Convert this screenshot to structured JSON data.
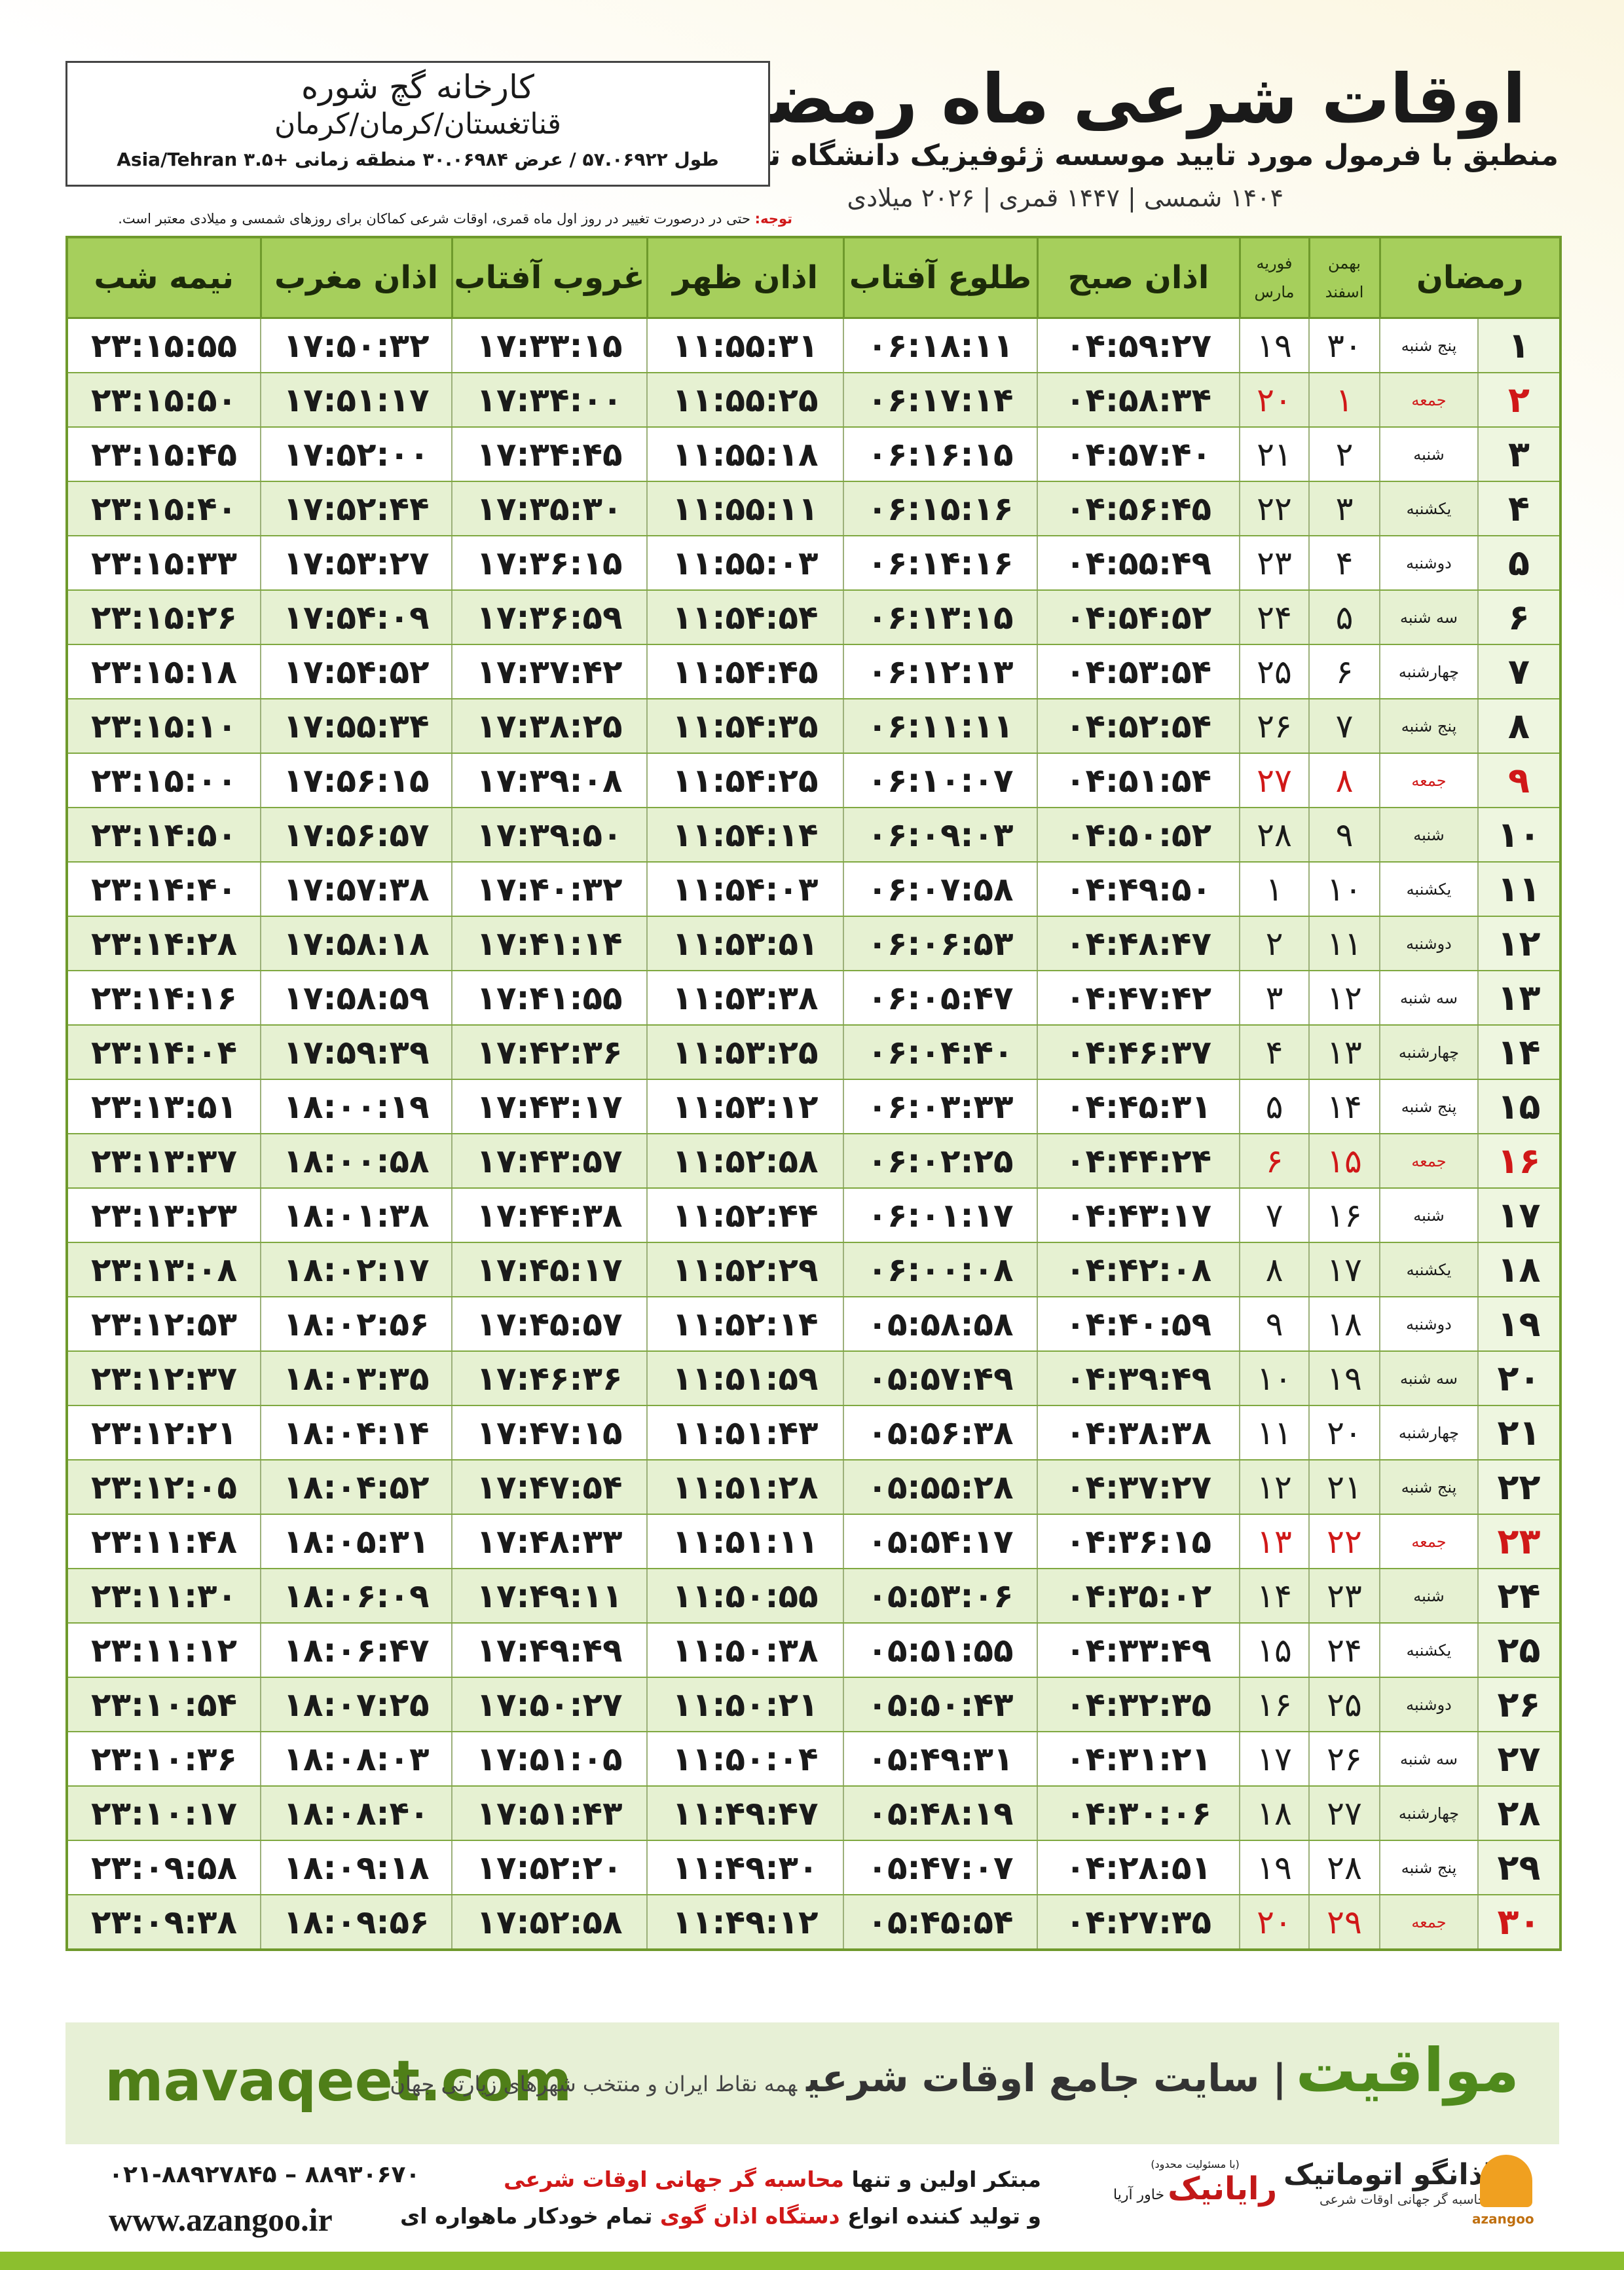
{
  "header": {
    "title": "اوقات شرعی ماه رمضان",
    "subtitle": "منطبق با فرمول مورد تایید موسسه ژئوفیزیک دانشگاه تهران",
    "year_line": "۱۴۰۴ شمسی | ۱۴۴۷ قمری | ۲۰۲۶ میلادی"
  },
  "location": {
    "name": "کارخانه گچ شوره",
    "region": "قناتغستان/کرمان/کرمان",
    "coords": "طول ۵۷.۰۶۹۲۲ / عرض ۳۰.۰۶۹۸۴ منطقه زمانی +۳.۵ Asia/Tehran"
  },
  "note": {
    "label": "توجه:",
    "text": "حتی در درصورت تغییر در روز اول ماه قمری، اوقات شرعی کماکان برای روزهای شمسی و میلادی معتبر است."
  },
  "table": {
    "columns": {
      "ramadan": "رمضان",
      "shamsi": [
        "بهمن",
        "اسفند"
      ],
      "miladi": [
        "فوریه",
        "مارس"
      ],
      "times": [
        "اذان صبح",
        "طلوع آفتاب",
        "اذان ظهر",
        "غروب آفتاب",
        "اذان مغرب",
        "نیمه شب"
      ]
    },
    "rows": [
      {
        "cells": [
          "۱",
          "پنج شنبه",
          "۳۰",
          "۱۹",
          "۰۴:۵۹:۲۷",
          "۰۶:۱۸:۱۱",
          "۱۱:۵۵:۳۱",
          "۱۷:۳۳:۱۵",
          "۱۷:۵۰:۳۲",
          "۲۳:۱۵:۵۵"
        ]
      },
      {
        "cells": [
          "۲",
          "جمعه",
          "۱",
          "۲۰",
          "۰۴:۵۸:۳۴",
          "۰۶:۱۷:۱۴",
          "۱۱:۵۵:۲۵",
          "۱۷:۳۴:۰۰",
          "۱۷:۵۱:۱۷",
          "۲۳:۱۵:۵۰"
        ],
        "color": "#d01818"
      },
      {
        "cells": [
          "۳",
          "شنبه",
          "۲",
          "۲۱",
          "۰۴:۵۷:۴۰",
          "۰۶:۱۶:۱۵",
          "۱۱:۵۵:۱۸",
          "۱۷:۳۴:۴۵",
          "۱۷:۵۲:۰۰",
          "۲۳:۱۵:۴۵"
        ]
      },
      {
        "cells": [
          "۴",
          "یکشنبه",
          "۳",
          "۲۲",
          "۰۴:۵۶:۴۵",
          "۰۶:۱۵:۱۶",
          "۱۱:۵۵:۱۱",
          "۱۷:۳۵:۳۰",
          "۱۷:۵۲:۴۴",
          "۲۳:۱۵:۴۰"
        ]
      },
      {
        "cells": [
          "۵",
          "دوشنبه",
          "۴",
          "۲۳",
          "۰۴:۵۵:۴۹",
          "۰۶:۱۴:۱۶",
          "۱۱:۵۵:۰۳",
          "۱۷:۳۶:۱۵",
          "۱۷:۵۳:۲۷",
          "۲۳:۱۵:۳۳"
        ]
      },
      {
        "cells": [
          "۶",
          "سه شنبه",
          "۵",
          "۲۴",
          "۰۴:۵۴:۵۲",
          "۰۶:۱۳:۱۵",
          "۱۱:۵۴:۵۴",
          "۱۷:۳۶:۵۹",
          "۱۷:۵۴:۰۹",
          "۲۳:۱۵:۲۶"
        ]
      },
      {
        "cells": [
          "۷",
          "چهارشنبه",
          "۶",
          "۲۵",
          "۰۴:۵۳:۵۴",
          "۰۶:۱۲:۱۳",
          "۱۱:۵۴:۴۵",
          "۱۷:۳۷:۴۲",
          "۱۷:۵۴:۵۲",
          "۲۳:۱۵:۱۸"
        ]
      },
      {
        "cells": [
          "۸",
          "پنج شنبه",
          "۷",
          "۲۶",
          "۰۴:۵۲:۵۴",
          "۰۶:۱۱:۱۱",
          "۱۱:۵۴:۳۵",
          "۱۷:۳۸:۲۵",
          "۱۷:۵۵:۳۴",
          "۲۳:۱۵:۱۰"
        ]
      },
      {
        "cells": [
          "۹",
          "جمعه",
          "۸",
          "۲۷",
          "۰۴:۵۱:۵۴",
          "۰۶:۱۰:۰۷",
          "۱۱:۵۴:۲۵",
          "۱۷:۳۹:۰۸",
          "۱۷:۵۶:۱۵",
          "۲۳:۱۵:۰۰"
        ],
        "color": "#d01818"
      },
      {
        "cells": [
          "۱۰",
          "شنبه",
          "۹",
          "۲۸",
          "۰۴:۵۰:۵۲",
          "۰۶:۰۹:۰۳",
          "۱۱:۵۴:۱۴",
          "۱۷:۳۹:۵۰",
          "۱۷:۵۶:۵۷",
          "۲۳:۱۴:۵۰"
        ]
      },
      {
        "cells": [
          "۱۱",
          "یکشنبه",
          "۱۰",
          "۱",
          "۰۴:۴۹:۵۰",
          "۰۶:۰۷:۵۸",
          "۱۱:۵۴:۰۳",
          "۱۷:۴۰:۳۲",
          "۱۷:۵۷:۳۸",
          "۲۳:۱۴:۴۰"
        ]
      },
      {
        "cells": [
          "۱۲",
          "دوشنبه",
          "۱۱",
          "۲",
          "۰۴:۴۸:۴۷",
          "۰۶:۰۶:۵۳",
          "۱۱:۵۳:۵۱",
          "۱۷:۴۱:۱۴",
          "۱۷:۵۸:۱۸",
          "۲۳:۱۴:۲۸"
        ]
      },
      {
        "cells": [
          "۱۳",
          "سه شنبه",
          "۱۲",
          "۳",
          "۰۴:۴۷:۴۲",
          "۰۶:۰۵:۴۷",
          "۱۱:۵۳:۳۸",
          "۱۷:۴۱:۵۵",
          "۱۷:۵۸:۵۹",
          "۲۳:۱۴:۱۶"
        ]
      },
      {
        "cells": [
          "۱۴",
          "چهارشنبه",
          "۱۳",
          "۴",
          "۰۴:۴۶:۳۷",
          "۰۶:۰۴:۴۰",
          "۱۱:۵۳:۲۵",
          "۱۷:۴۲:۳۶",
          "۱۷:۵۹:۳۹",
          "۲۳:۱۴:۰۴"
        ]
      },
      {
        "cells": [
          "۱۵",
          "پنج شنبه",
          "۱۴",
          "۵",
          "۰۴:۴۵:۳۱",
          "۰۶:۰۳:۳۳",
          "۱۱:۵۳:۱۲",
          "۱۷:۴۳:۱۷",
          "۱۸:۰۰:۱۹",
          "۲۳:۱۳:۵۱"
        ]
      },
      {
        "cells": [
          "۱۶",
          "جمعه",
          "۱۵",
          "۶",
          "۰۴:۴۴:۲۴",
          "۰۶:۰۲:۲۵",
          "۱۱:۵۲:۵۸",
          "۱۷:۴۳:۵۷",
          "۱۸:۰۰:۵۸",
          "۲۳:۱۳:۳۷"
        ],
        "color": "#d01818"
      },
      {
        "cells": [
          "۱۷",
          "شنبه",
          "۱۶",
          "۷",
          "۰۴:۴۳:۱۷",
          "۰۶:۰۱:۱۷",
          "۱۱:۵۲:۴۴",
          "۱۷:۴۴:۳۸",
          "۱۸:۰۱:۳۸",
          "۲۳:۱۳:۲۳"
        ]
      },
      {
        "cells": [
          "۱۸",
          "یکشنبه",
          "۱۷",
          "۸",
          "۰۴:۴۲:۰۸",
          "۰۶:۰۰:۰۸",
          "۱۱:۵۲:۲۹",
          "۱۷:۴۵:۱۷",
          "۱۸:۰۲:۱۷",
          "۲۳:۱۳:۰۸"
        ]
      },
      {
        "cells": [
          "۱۹",
          "دوشنبه",
          "۱۸",
          "۹",
          "۰۴:۴۰:۵۹",
          "۰۵:۵۸:۵۸",
          "۱۱:۵۲:۱۴",
          "۱۷:۴۵:۵۷",
          "۱۸:۰۲:۵۶",
          "۲۳:۱۲:۵۳"
        ]
      },
      {
        "cells": [
          "۲۰",
          "سه شنبه",
          "۱۹",
          "۱۰",
          "۰۴:۳۹:۴۹",
          "۰۵:۵۷:۴۹",
          "۱۱:۵۱:۵۹",
          "۱۷:۴۶:۳۶",
          "۱۸:۰۳:۳۵",
          "۲۳:۱۲:۳۷"
        ]
      },
      {
        "cells": [
          "۲۱",
          "چهارشنبه",
          "۲۰",
          "۱۱",
          "۰۴:۳۸:۳۸",
          "۰۵:۵۶:۳۸",
          "۱۱:۵۱:۴۳",
          "۱۷:۴۷:۱۵",
          "۱۸:۰۴:۱۴",
          "۲۳:۱۲:۲۱"
        ]
      },
      {
        "cells": [
          "۲۲",
          "پنج شنبه",
          "۲۱",
          "۱۲",
          "۰۴:۳۷:۲۷",
          "۰۵:۵۵:۲۸",
          "۱۱:۵۱:۲۸",
          "۱۷:۴۷:۵۴",
          "۱۸:۰۴:۵۲",
          "۲۳:۱۲:۰۵"
        ]
      },
      {
        "cells": [
          "۲۳",
          "جمعه",
          "۲۲",
          "۱۳",
          "۰۴:۳۶:۱۵",
          "۰۵:۵۴:۱۷",
          "۱۱:۵۱:۱۱",
          "۱۷:۴۸:۳۳",
          "۱۸:۰۵:۳۱",
          "۲۳:۱۱:۴۸"
        ],
        "color": "#d01818"
      },
      {
        "cells": [
          "۲۴",
          "شنبه",
          "۲۳",
          "۱۴",
          "۰۴:۳۵:۰۲",
          "۰۵:۵۳:۰۶",
          "۱۱:۵۰:۵۵",
          "۱۷:۴۹:۱۱",
          "۱۸:۰۶:۰۹",
          "۲۳:۱۱:۳۰"
        ]
      },
      {
        "cells": [
          "۲۵",
          "یکشنبه",
          "۲۴",
          "۱۵",
          "۰۴:۳۳:۴۹",
          "۰۵:۵۱:۵۵",
          "۱۱:۵۰:۳۸",
          "۱۷:۴۹:۴۹",
          "۱۸:۰۶:۴۷",
          "۲۳:۱۱:۱۲"
        ]
      },
      {
        "cells": [
          "۲۶",
          "دوشنبه",
          "۲۵",
          "۱۶",
          "۰۴:۳۲:۳۵",
          "۰۵:۵۰:۴۳",
          "۱۱:۵۰:۲۱",
          "۱۷:۵۰:۲۷",
          "۱۸:۰۷:۲۵",
          "۲۳:۱۰:۵۴"
        ]
      },
      {
        "cells": [
          "۲۷",
          "سه شنبه",
          "۲۶",
          "۱۷",
          "۰۴:۳۱:۲۱",
          "۰۵:۴۹:۳۱",
          "۱۱:۵۰:۰۴",
          "۱۷:۵۱:۰۵",
          "۱۸:۰۸:۰۳",
          "۲۳:۱۰:۳۶"
        ]
      },
      {
        "cells": [
          "۲۸",
          "چهارشنبه",
          "۲۷",
          "۱۸",
          "۰۴:۳۰:۰۶",
          "۰۵:۴۸:۱۹",
          "۱۱:۴۹:۴۷",
          "۱۷:۵۱:۴۳",
          "۱۸:۰۸:۴۰",
          "۲۳:۱۰:۱۷"
        ]
      },
      {
        "cells": [
          "۲۹",
          "پنج شنبه",
          "۲۸",
          "۱۹",
          "۰۴:۲۸:۵۱",
          "۰۵:۴۷:۰۷",
          "۱۱:۴۹:۳۰",
          "۱۷:۵۲:۲۰",
          "۱۸:۰۹:۱۸",
          "۲۳:۰۹:۵۸"
        ]
      },
      {
        "cells": [
          "۳۰",
          "جمعه",
          "۲۹",
          "۲۰",
          "۰۴:۲۷:۳۵",
          "۰۵:۴۵:۵۴",
          "۱۱:۴۹:۱۲",
          "۱۷:۵۲:۵۸",
          "۱۸:۰۹:۵۶",
          "۲۳:۰۹:۳۸"
        ],
        "color": "#d01818"
      }
    ]
  },
  "footer": {
    "brand": "مواقیت",
    "tagline": "| سایت جامع اوقات شرعی",
    "coverage": "همه نقاط ایران و منتخب شهرهای زیارتی جهان",
    "site": "mavaqeet.com",
    "phone": "۰۲۱-۸۸۹۲۷۸۴۵ – ۸۸۹۳۰۶۷۰",
    "web": "www.azangoo.ir",
    "promo1": [
      "مبتکر اولین و تنها",
      "محاسبه گر جهانی اوقات شرعی"
    ],
    "promo2": [
      "و تولید کننده انواع",
      "دستگاه اذان گوی",
      "تمام خودکار ماهواره ای"
    ],
    "rayanik": {
      "note": "(با مسئولیت محدود)",
      "name": "رایانیک",
      "sub": "خاور آریا"
    },
    "azangoo": {
      "name": "اذانگو اتوماتیک",
      "sub": "محاسبه گر جهانی اوقات شرعی",
      "latin": "azangoo"
    }
  }
}
